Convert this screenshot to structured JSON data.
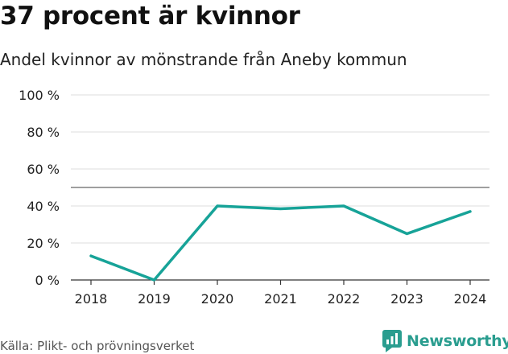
{
  "title": "37 procent är kvinnor",
  "subtitle": "Andel kvinnor av mönstrande från Aneby kommun",
  "source": "Källa: Plikt- och prövningsverket",
  "brand": {
    "name": "Newsworthy",
    "logo_icon": "newsworthy-logo-icon",
    "color": "#2a9d8f"
  },
  "chart_data": {
    "type": "line",
    "x": [
      "2018",
      "2019",
      "2020",
      "2021",
      "2022",
      "2023",
      "2024"
    ],
    "series": [
      {
        "values": [
          13,
          0,
          40,
          38.5,
          40,
          25,
          37
        ],
        "color": "#17a398"
      }
    ],
    "y_ticks": [
      "0 %",
      "20 %",
      "40 %",
      "60 %",
      "80 %",
      "100 %"
    ],
    "y_tick_values": [
      0,
      20,
      40,
      60,
      80,
      100
    ],
    "ylim": [
      0,
      100
    ],
    "reference_line": 50,
    "grid": true,
    "xlabel": "",
    "ylabel": ""
  }
}
